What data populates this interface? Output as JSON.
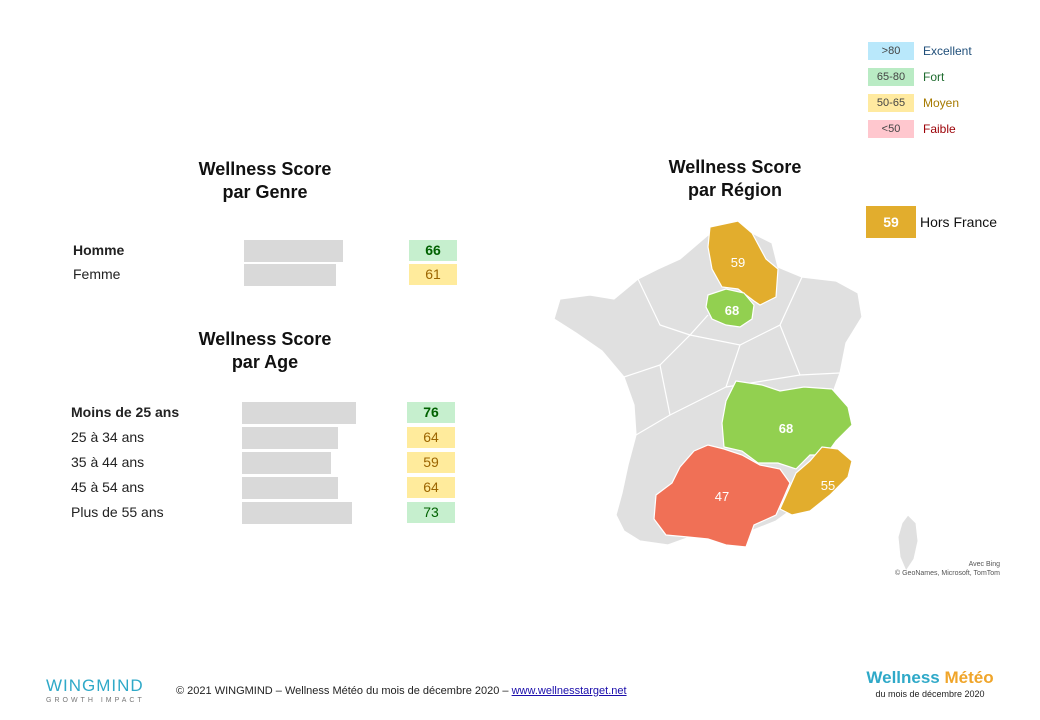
{
  "legend": [
    {
      "range": ">80",
      "label": "Excellent",
      "chip": "#b9e8fb",
      "text": "#1f4e79"
    },
    {
      "range": "65-80",
      "label": "Fort",
      "chip": "#b9ebc4",
      "text": "#1e6b2e"
    },
    {
      "range": "50-65",
      "label": "Moyen",
      "chip": "#ffeaa0",
      "text": "#a67a00"
    },
    {
      "range": "<50",
      "label": "Faible",
      "chip": "#ffc7ce",
      "text": "#9c0006"
    }
  ],
  "genre": {
    "title_line1": "Wellness Score",
    "title_line2": "par Genre",
    "rows": [
      {
        "label": "Homme",
        "score": 66,
        "bold": true,
        "bar": "#c6efce",
        "text": "#006100"
      },
      {
        "label": "Femme",
        "score": 61,
        "bold": false,
        "bar": "#ffeb9c",
        "text": "#9c6500"
      }
    ]
  },
  "age": {
    "title_line1": "Wellness Score",
    "title_line2": "par Age",
    "rows": [
      {
        "label": "Moins de 25 ans",
        "score": 76,
        "bold": true,
        "bar": "#c6efce",
        "text": "#006100"
      },
      {
        "label": "25 à 34 ans",
        "score": 64,
        "bold": false,
        "bar": "#ffeb9c",
        "text": "#9c6500"
      },
      {
        "label": "35 à 44 ans",
        "score": 59,
        "bold": false,
        "bar": "#ffeb9c",
        "text": "#9c6500"
      },
      {
        "label": "45 à 54 ans",
        "score": 64,
        "bold": false,
        "bar": "#ffeb9c",
        "text": "#9c6500"
      },
      {
        "label": "Plus de 55 ans",
        "score": 73,
        "bold": false,
        "bar": "#c6efce",
        "text": "#006100"
      }
    ]
  },
  "region": {
    "title_line1": "Wellness Score",
    "title_line2": "par Région",
    "hors_france": {
      "score": 59,
      "label": "Hors France"
    },
    "map_credit_line1": "Avec Bing",
    "map_credit_line2": "© GeoNames, Microsoft, TomTom"
  },
  "chart_data": [
    {
      "type": "bar",
      "title": "Wellness Score par Genre",
      "categories": [
        "Homme",
        "Femme"
      ],
      "values": [
        66,
        61
      ]
    },
    {
      "type": "bar",
      "title": "Wellness Score par Age",
      "categories": [
        "Moins de 25 ans",
        "25 à 34 ans",
        "35 à 44 ans",
        "45 à 54 ans",
        "Plus de 55 ans"
      ],
      "values": [
        76,
        64,
        59,
        64,
        73
      ]
    },
    {
      "type": "map",
      "title": "Wellness Score par Région",
      "regions": [
        {
          "value": 59,
          "color": "#e2ad2d"
        },
        {
          "value": 68,
          "color": "#92d050"
        },
        {
          "value": 68,
          "color": "#92d050"
        },
        {
          "value": 55,
          "color": "#e2ad2d"
        },
        {
          "value": 47,
          "color": "#f07056"
        }
      ],
      "hors_france": 59
    }
  ],
  "footer": {
    "brand": "WINGMIND",
    "brand_sub": "GROWTH IMPACT",
    "copyright": "© 2021 WINGMIND – Wellness Météo du mois de décembre 2020 – ",
    "link": "www.wellnesstarget.net",
    "logo_word1": "Wellness",
    "logo_word2": "Météo",
    "logo_sub": "du mois de décembre 2020"
  }
}
